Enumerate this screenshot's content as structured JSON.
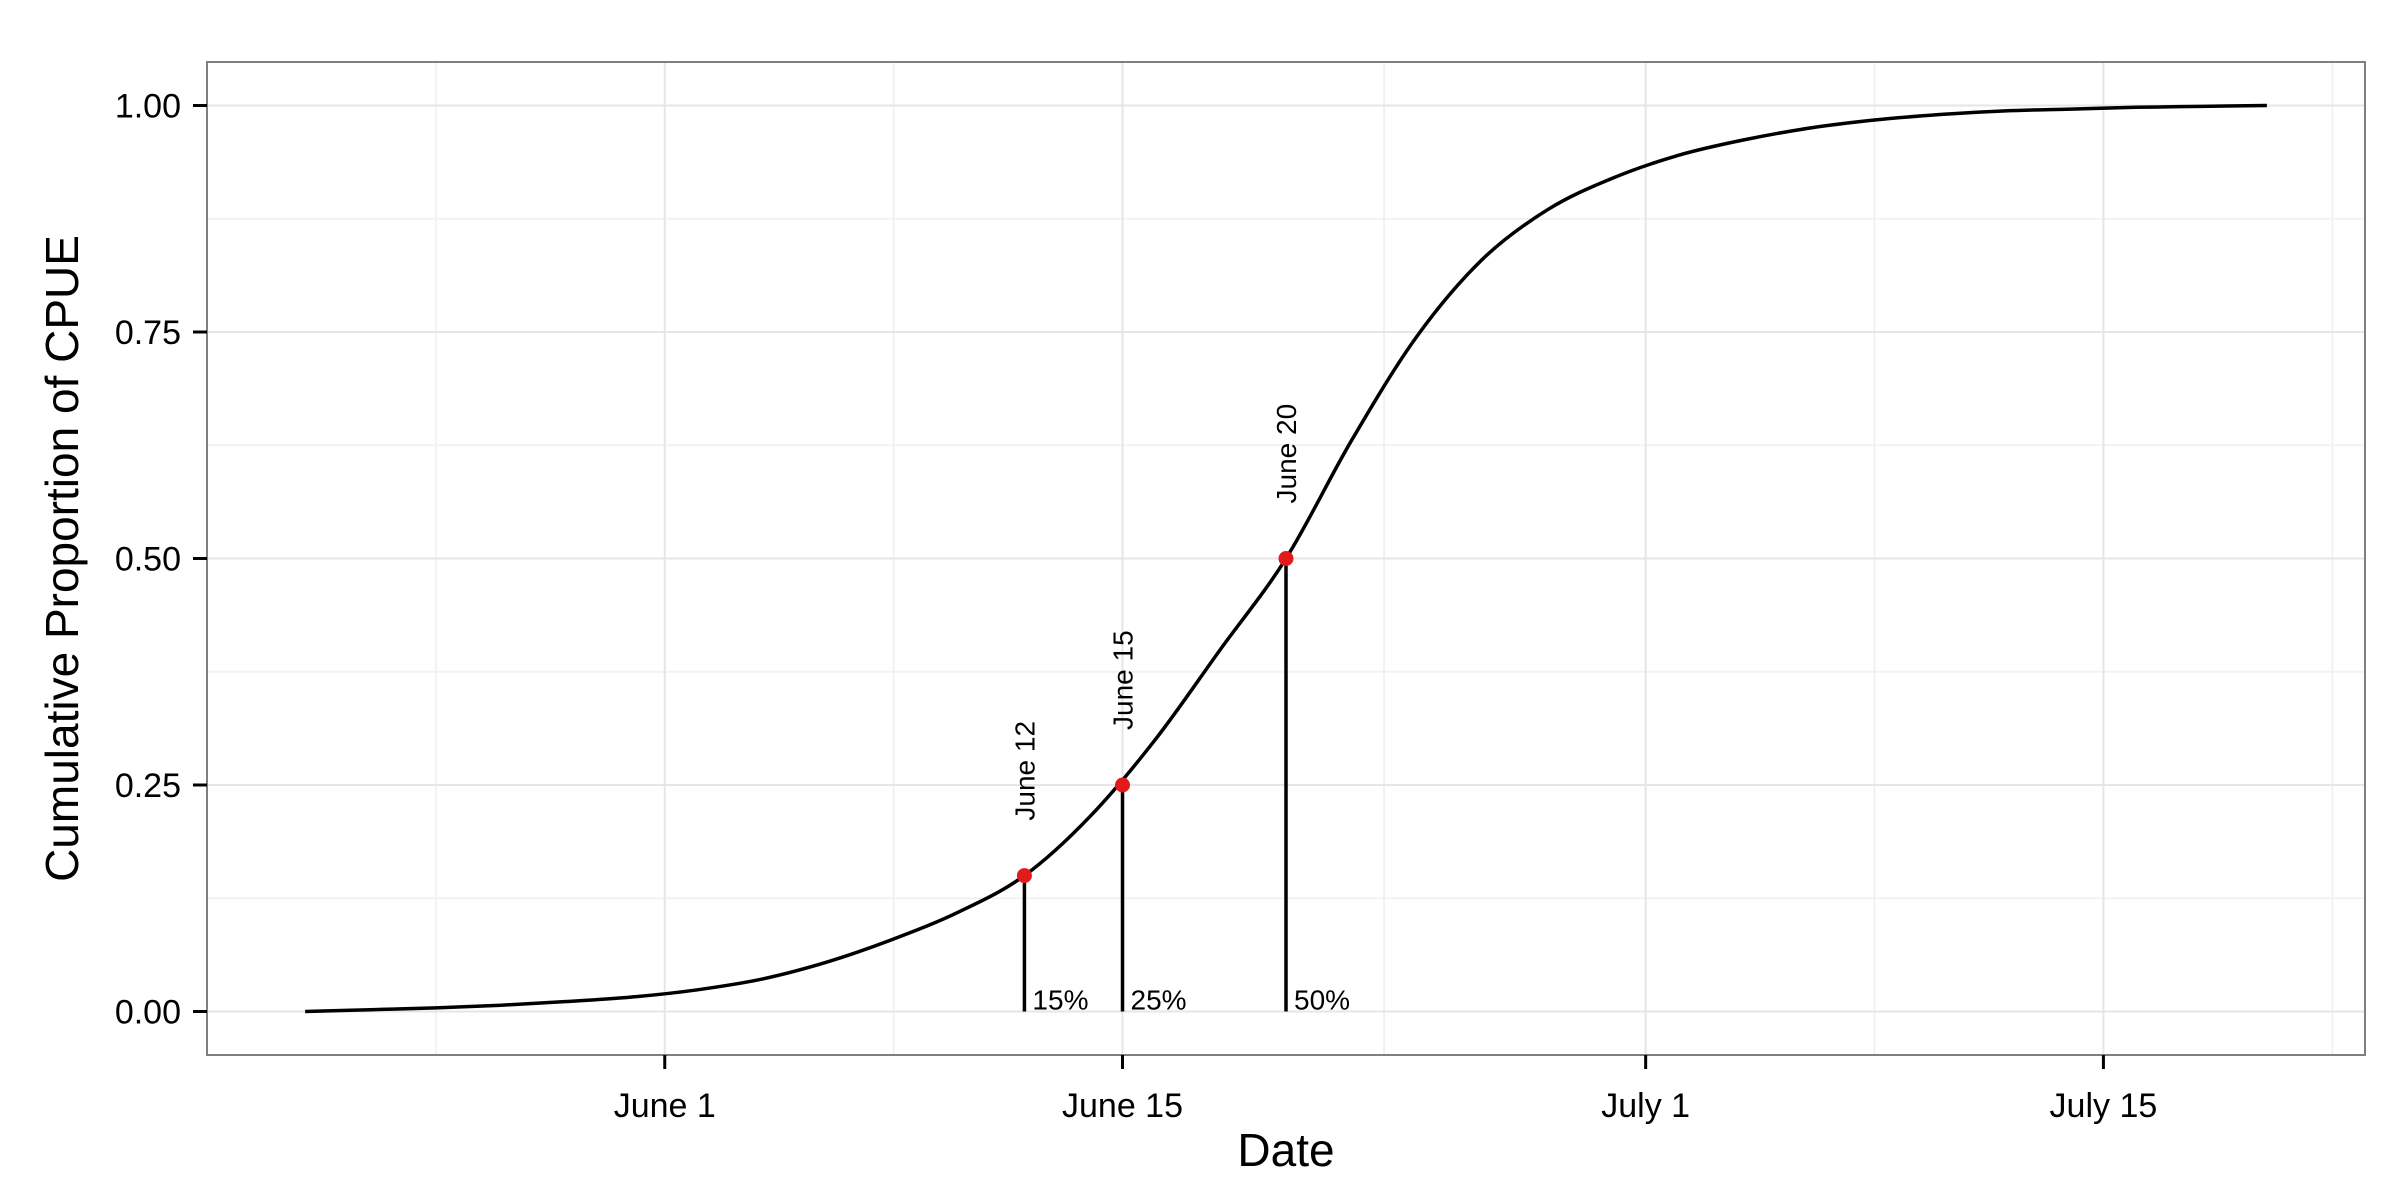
{
  "chart_data": {
    "type": "line",
    "title": "",
    "xlabel": "Date",
    "ylabel": "Cumulative Proportion of CPUE",
    "x_ticks": [
      "June 1",
      "June 15",
      "July 1",
      "July 15"
    ],
    "y_ticks": [
      "0.00",
      "0.25",
      "0.50",
      "0.75",
      "1.00"
    ],
    "grid": true,
    "series": [
      {
        "x": [
          "May 21",
          "May 23",
          "May 25",
          "May 27",
          "May 29",
          "May 31",
          "June 2",
          "June 4",
          "June 6",
          "June 8",
          "June 10",
          "June 12",
          "June 14",
          "June 16",
          "June 18",
          "June 20",
          "June 22",
          "June 24",
          "June 26",
          "June 28",
          "June 30",
          "July 2",
          "July 4",
          "July 6",
          "July 8",
          "July 10",
          "July 12",
          "July 14",
          "July 16",
          "July 18",
          "July 20"
        ],
        "y": [
          0.0,
          0.002,
          0.004,
          0.007,
          0.011,
          0.016,
          0.024,
          0.036,
          0.055,
          0.08,
          0.11,
          0.15,
          0.215,
          0.3,
          0.4,
          0.5,
          0.63,
          0.745,
          0.83,
          0.885,
          0.92,
          0.945,
          0.962,
          0.975,
          0.984,
          0.99,
          0.994,
          0.996,
          0.998,
          0.999,
          1.0
        ]
      }
    ],
    "markers": [
      {
        "date": "June 12",
        "value": 0.15,
        "percent_label": "15%",
        "date_label": "June 12"
      },
      {
        "date": "June 15",
        "value": 0.25,
        "percent_label": "25%",
        "date_label": "June 15"
      },
      {
        "date": "June 20",
        "value": 0.5,
        "percent_label": "50%",
        "date_label": "June 20"
      }
    ],
    "xlim": [
      "May 18",
      "July 23"
    ],
    "ylim": [
      -0.048,
      1.048
    ],
    "colors": {
      "line": "#000000",
      "marker": "#e31a1c",
      "grid": "#e6e6e6",
      "border": "#7f7f7f"
    }
  }
}
